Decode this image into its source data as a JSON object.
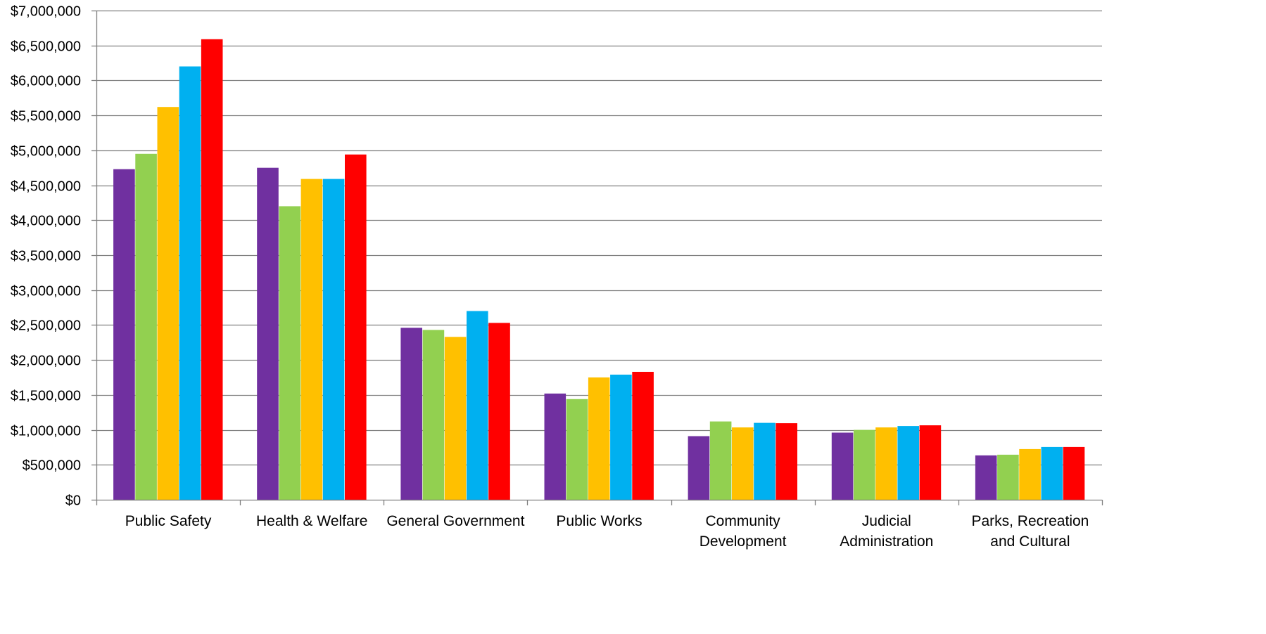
{
  "chart_data": {
    "type": "bar",
    "title": "",
    "xlabel": "",
    "ylabel": "",
    "ylim": [
      0,
      7000000
    ],
    "y_tick_step": 500000,
    "y_tick_labels": [
      "$0",
      "$500,000",
      "$1,000,000",
      "$1,500,000",
      "$2,000,000",
      "$2,500,000",
      "$3,000,000",
      "$3,500,000",
      "$4,000,000",
      "$4,500,000",
      "$5,000,000",
      "$5,500,000",
      "$6,000,000",
      "$6,500,000",
      "$7,000,000"
    ],
    "grid": "horizontal",
    "legend": "none",
    "categories": [
      [
        "Public Safety"
      ],
      [
        "Health & Welfare"
      ],
      [
        "General Government"
      ],
      [
        "Public Works"
      ],
      [
        "Community",
        "Development"
      ],
      [
        "Judicial",
        "Administration"
      ],
      [
        "Parks, Recreation",
        "and Cultural"
      ]
    ],
    "series": [
      {
        "color": "#7030A0",
        "values": [
          4730000,
          4750000,
          2460000,
          1520000,
          910000,
          960000,
          635000
        ]
      },
      {
        "color": "#92D050",
        "values": [
          4950000,
          4200000,
          2430000,
          1440000,
          1120000,
          1000000,
          645000
        ]
      },
      {
        "color": "#FFC000",
        "values": [
          5620000,
          4590000,
          2330000,
          1750000,
          1035000,
          1035000,
          725000
        ]
      },
      {
        "color": "#00B0F0",
        "values": [
          6200000,
          4590000,
          2700000,
          1790000,
          1100000,
          1055000,
          755000
        ]
      },
      {
        "color": "#FF0000",
        "values": [
          6590000,
          4940000,
          2530000,
          1830000,
          1095000,
          1065000,
          755000
        ]
      }
    ]
  },
  "style": {
    "grid_color": "#808080",
    "axis_color": "#808080"
  }
}
